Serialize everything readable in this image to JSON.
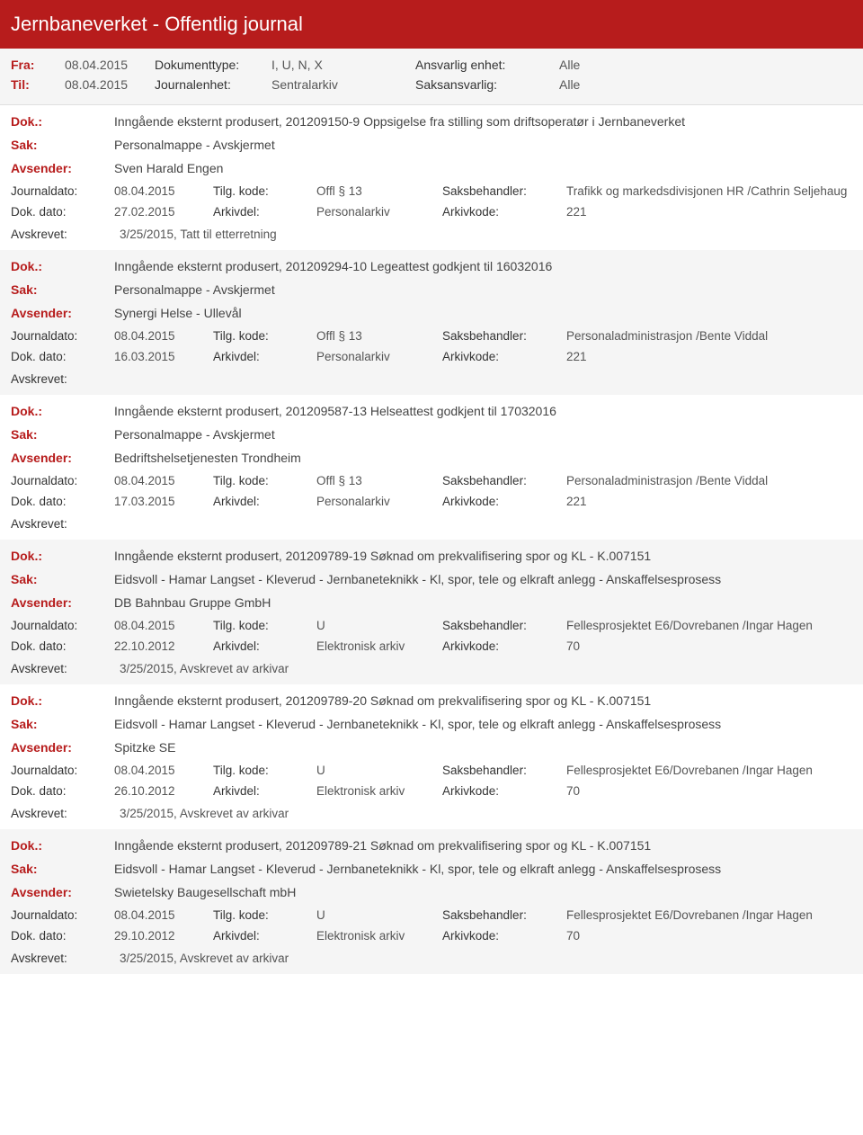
{
  "header": {
    "title": "Jernbaneverket - Offentlig journal"
  },
  "filters": {
    "fra_label": "Fra:",
    "fra_value": "08.04.2015",
    "til_label": "Til:",
    "til_value": "08.04.2015",
    "doktype_label": "Dokumenttype:",
    "doktype_value": "I, U, N, X",
    "journalenhet_label": "Journalenhet:",
    "journalenhet_value": "Sentralarkiv",
    "ansvarlig_label": "Ansvarlig enhet:",
    "ansvarlig_value": "Alle",
    "saksansvarlig_label": "Saksansvarlig:",
    "saksansvarlig_value": "Alle"
  },
  "labels": {
    "dok": "Dok.:",
    "sak": "Sak:",
    "avsender": "Avsender:",
    "journaldato": "Journaldato:",
    "dokdato": "Dok. dato:",
    "tilgkode": "Tilg. kode:",
    "arkivdel": "Arkivdel:",
    "saksbehandler": "Saksbehandler:",
    "arkivkode": "Arkivkode:",
    "avskrevet": "Avskrevet:"
  },
  "entries": [
    {
      "dok": "Inngående eksternt produsert, 201209150-9 Oppsigelse fra stilling som driftsoperatør i Jernbaneverket",
      "sak": "Personalmappe - Avskjermet",
      "avsender": "Sven Harald Engen",
      "journaldato": "08.04.2015",
      "tilgkode": "Offl § 13",
      "saksbehandler": "Trafikk og markedsdivisjonen HR /Cathrin Seljehaug",
      "dokdato": "27.02.2015",
      "arkivdel": "Personalarkiv",
      "arkivkode": "221",
      "avskrevet": "3/25/2015, Tatt til etterretning"
    },
    {
      "dok": "Inngående eksternt produsert, 201209294-10 Legeattest godkjent til 16032016",
      "sak": "Personalmappe - Avskjermet",
      "avsender": "Synergi Helse - Ullevål",
      "journaldato": "08.04.2015",
      "tilgkode": "Offl § 13",
      "saksbehandler": "Personaladministrasjon /Bente Viddal",
      "dokdato": "16.03.2015",
      "arkivdel": "Personalarkiv",
      "arkivkode": "221",
      "avskrevet": ""
    },
    {
      "dok": "Inngående eksternt produsert, 201209587-13 Helseattest godkjent til 17032016",
      "sak": "Personalmappe - Avskjermet",
      "avsender": "Bedriftshelsetjenesten Trondheim",
      "journaldato": "08.04.2015",
      "tilgkode": "Offl § 13",
      "saksbehandler": "Personaladministrasjon /Bente Viddal",
      "dokdato": "17.03.2015",
      "arkivdel": "Personalarkiv",
      "arkivkode": "221",
      "avskrevet": ""
    },
    {
      "dok": "Inngående eksternt produsert, 201209789-19 Søknad om prekvalifisering spor og KL - K.007151",
      "sak": "Eidsvoll - Hamar Langset - Kleverud - Jernbaneteknikk - Kl, spor, tele og elkraft anlegg - Anskaffelsesprosess",
      "avsender": "DB Bahnbau Gruppe GmbH",
      "journaldato": "08.04.2015",
      "tilgkode": "U",
      "saksbehandler": "Fellesprosjektet E6/Dovrebanen /Ingar Hagen",
      "dokdato": "22.10.2012",
      "arkivdel": "Elektronisk arkiv",
      "arkivkode": "70",
      "avskrevet": "3/25/2015, Avskrevet av arkivar"
    },
    {
      "dok": "Inngående eksternt produsert, 201209789-20 Søknad om prekvalifisering spor og KL - K.007151",
      "sak": "Eidsvoll - Hamar Langset - Kleverud - Jernbaneteknikk - Kl, spor, tele og elkraft anlegg - Anskaffelsesprosess",
      "avsender": "Spitzke SE",
      "journaldato": "08.04.2015",
      "tilgkode": "U",
      "saksbehandler": "Fellesprosjektet E6/Dovrebanen /Ingar Hagen",
      "dokdato": "26.10.2012",
      "arkivdel": "Elektronisk arkiv",
      "arkivkode": "70",
      "avskrevet": "3/25/2015, Avskrevet av arkivar"
    },
    {
      "dok": "Inngående eksternt produsert, 201209789-21 Søknad om prekvalifisering spor og KL - K.007151",
      "sak": "Eidsvoll - Hamar Langset - Kleverud - Jernbaneteknikk - Kl, spor, tele og elkraft anlegg - Anskaffelsesprosess",
      "avsender": "Swietelsky Baugesellschaft mbH",
      "journaldato": "08.04.2015",
      "tilgkode": "U",
      "saksbehandler": "Fellesprosjektet E6/Dovrebanen /Ingar Hagen",
      "dokdato": "29.10.2012",
      "arkivdel": "Elektronisk arkiv",
      "arkivkode": "70",
      "avskrevet": "3/25/2015, Avskrevet av arkivar"
    }
  ]
}
